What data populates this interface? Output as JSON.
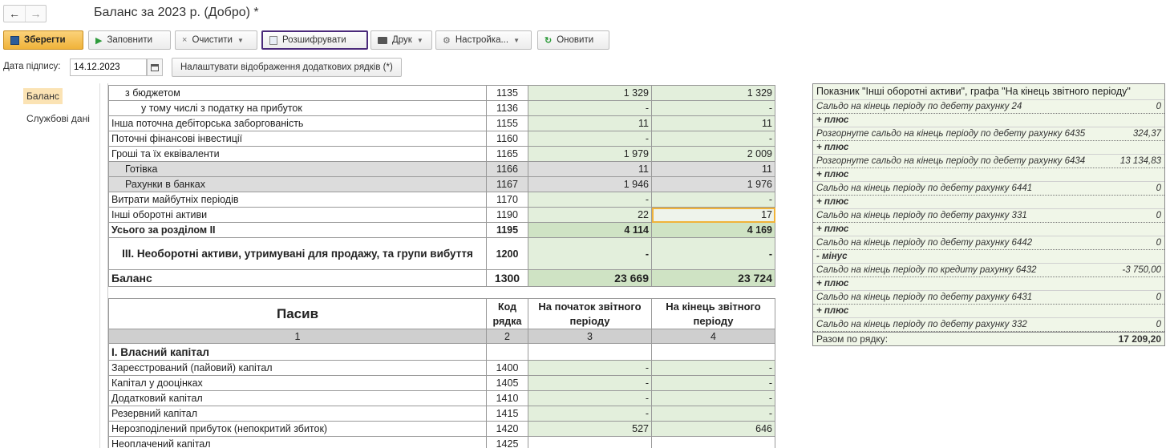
{
  "window": {
    "back_glyph": "←",
    "forward_glyph": "→",
    "title": "Баланс за 2023 р. (Добро) *"
  },
  "toolbar": {
    "save": "Зберегти",
    "fill": "Заповнити",
    "clear": "Очистити",
    "decode": "Розшифрувати",
    "print": "Друк",
    "settings": "Настройка...",
    "refresh": "Оновити"
  },
  "sign": {
    "label": "Дата підпису:",
    "date": "14.12.2023",
    "extra_rows_button": "Налаштувати відображення додаткових рядків (*)"
  },
  "sidebar": {
    "items": [
      "Баланс",
      "Службові дані"
    ]
  },
  "assets": {
    "rows": [
      {
        "name": "з бюджетом",
        "code": "1135",
        "start": "1 329",
        "end": "1 329"
      },
      {
        "name": "у тому числі з податку на прибуток",
        "code": "1136",
        "start": "-",
        "end": "-"
      },
      {
        "name": "Інша поточна дебіторська заборгованість",
        "code": "1155",
        "start": "11",
        "end": "11"
      },
      {
        "name": "Поточні фінансові інвестиції",
        "code": "1160",
        "start": "-",
        "end": "-"
      },
      {
        "name": "Гроші та їх еквіваленти",
        "code": "1165",
        "start": "1 979",
        "end": "2 009"
      },
      {
        "name": "Готівка",
        "code": "1166",
        "start": "11",
        "end": "11"
      },
      {
        "name": "Рахунки в банках",
        "code": "1167",
        "start": "1 946",
        "end": "1 976"
      },
      {
        "name": "Витрати майбутніх періодів",
        "code": "1170",
        "start": "-",
        "end": "-"
      },
      {
        "name": "Інші оборотні активи",
        "code": "1190",
        "start": "22",
        "end": "17"
      },
      {
        "name": "Усього за розділом II",
        "code": "1195",
        "start": "4 114",
        "end": "4 169"
      },
      {
        "name": "III. Необоротні активи, утримувані для продажу, та групи вибуття",
        "code": "1200",
        "start": "-",
        "end": "-"
      },
      {
        "name": "Баланс",
        "code": "1300",
        "start": "23 669",
        "end": "23 724"
      }
    ]
  },
  "liabilities": {
    "header": {
      "name": "Пасив",
      "code": "Код рядка",
      "start": "На початок звітного періоду",
      "end": "На кінець звітного періоду"
    },
    "col_numbers": [
      "1",
      "2",
      "3",
      "4"
    ],
    "section": "I. Власний капітал",
    "rows": [
      {
        "name": "Зареєстрований (пайовий) капітал",
        "code": "1400",
        "start": "-",
        "end": "-"
      },
      {
        "name": "Капітал у дооцінках",
        "code": "1405",
        "start": "-",
        "end": "-"
      },
      {
        "name": "Додатковий капітал",
        "code": "1410",
        "start": "-",
        "end": "-"
      },
      {
        "name": "Резервний капітал",
        "code": "1415",
        "start": "-",
        "end": "-"
      },
      {
        "name": "Нерозподілений прибуток  (непокритий збиток)",
        "code": "1420",
        "start": "527",
        "end": "646"
      },
      {
        "name": "Неоплачений капітал",
        "code": "1425",
        "start": "",
        "end": ""
      }
    ]
  },
  "decode_panel": {
    "title": "Показник \"Інші оборотні активи\", графа \"На кінець звітного періоду\"",
    "lines": [
      {
        "type": "row",
        "label": "Сальдо на кінець періоду по дебету рахунку 24",
        "value": "0"
      },
      {
        "type": "op",
        "label": "+ плюс"
      },
      {
        "type": "row",
        "label": "Розгорнуте сальдо на кінець періоду по дебету рахунку 6435",
        "value": "324,37"
      },
      {
        "type": "op",
        "label": "+ плюс"
      },
      {
        "type": "row",
        "label": "Розгорнуте сальдо на кінець періоду по дебету рахунку 6434",
        "value": "13 134,83"
      },
      {
        "type": "op",
        "label": "+ плюс"
      },
      {
        "type": "row",
        "label": "Сальдо на кінець періоду по дебету рахунку 6441",
        "value": "0"
      },
      {
        "type": "op",
        "label": "+ плюс"
      },
      {
        "type": "row",
        "label": "Сальдо на кінець періоду по дебету рахунку 331",
        "value": "0"
      },
      {
        "type": "op",
        "label": "+ плюс"
      },
      {
        "type": "row",
        "label": "Сальдо на кінець періоду по дебету рахунку 6442",
        "value": "0"
      },
      {
        "type": "op",
        "label": "- мінус"
      },
      {
        "type": "row",
        "label": "Сальдо на кінець періоду по кредиту рахунку 6432",
        "value": "-3 750,00"
      },
      {
        "type": "op",
        "label": "+ плюс"
      },
      {
        "type": "row",
        "label": "Сальдо на кінець періоду по дебету рахунку 6431",
        "value": "0"
      },
      {
        "type": "op",
        "label": "+ плюс"
      },
      {
        "type": "row",
        "label": "Сальдо на кінець періоду по дебету рахунку 332",
        "value": "0"
      }
    ],
    "total_label": "Разом по рядку:",
    "total_value": "17 209,20"
  }
}
